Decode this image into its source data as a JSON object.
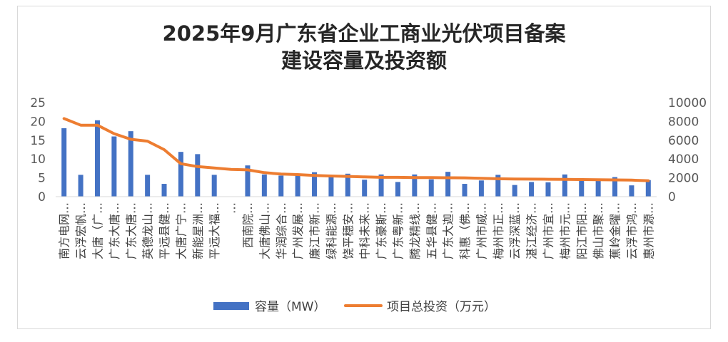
{
  "chart_data": {
    "type": "bar-line",
    "title_line1": "2025年9月广东省企业工商业光伏项目备案",
    "title_line2": "建设容量及投资额",
    "categories": [
      "南方电网…",
      "云浮宏帆…",
      "大唐（广…",
      "广东大唐…",
      "广东大唐…",
      "英德龙山…",
      "平远县健…",
      "大唐广宁…",
      "新能星洲…",
      "平远大福…",
      "…",
      "西南院…",
      "大唐佛山…",
      "华润综合…",
      "广州发展…",
      "廉江市新…",
      "绿科能源…",
      "饶平穗安…",
      "中科未来…",
      "广东豪斯…",
      "广东粤新…",
      "腾龙精线…",
      "五华县健…",
      "广东大迦…",
      "科惠（佛…",
      "广州市威…",
      "梅州市正…",
      "云浮深蓝…",
      "湛江经济…",
      "广州市宜…",
      "梅州市元…",
      "阳江市阳…",
      "佛山市聚…",
      "蕉岭金曜…",
      "云浮市鸿…",
      "惠州市源…"
    ],
    "series": [
      {
        "name": "容量（MW）",
        "kind": "bar",
        "axis": "left",
        "color": "#4472c4",
        "values": [
          18.2,
          5.8,
          20.3,
          16.0,
          17.4,
          5.8,
          3.4,
          11.9,
          11.3,
          5.8,
          0,
          8.3,
          5.9,
          5.6,
          5.6,
          6.5,
          5.3,
          6.1,
          4.5,
          5.9,
          3.9,
          5.9,
          4.6,
          6.6,
          3.4,
          4.3,
          5.8,
          3.1,
          3.9,
          3.8,
          5.9,
          4.9,
          4.5,
          5.2,
          3.0,
          4.4
        ]
      },
      {
        "name": "项目总投资（万元）",
        "kind": "line",
        "axis": "right",
        "color": "#ed7d31",
        "values": [
          8300,
          7600,
          7600,
          6700,
          6100,
          5900,
          5000,
          3500,
          3200,
          3050,
          2900,
          2850,
          2550,
          2400,
          2350,
          2250,
          2200,
          2150,
          2100,
          2050,
          2050,
          2030,
          2020,
          2010,
          2000,
          1950,
          1900,
          1880,
          1860,
          1850,
          1840,
          1820,
          1800,
          1780,
          1760,
          1700
        ]
      }
    ],
    "y_left": {
      "min": 0,
      "max": 25,
      "ticks": [
        "0",
        "5",
        "10",
        "15",
        "20",
        "25"
      ]
    },
    "y_right": {
      "min": 0,
      "max": 10000,
      "ticks": [
        "0",
        "2000",
        "4000",
        "6000",
        "8000",
        "10000"
      ]
    },
    "legend_position": "bottom",
    "grid": false
  }
}
